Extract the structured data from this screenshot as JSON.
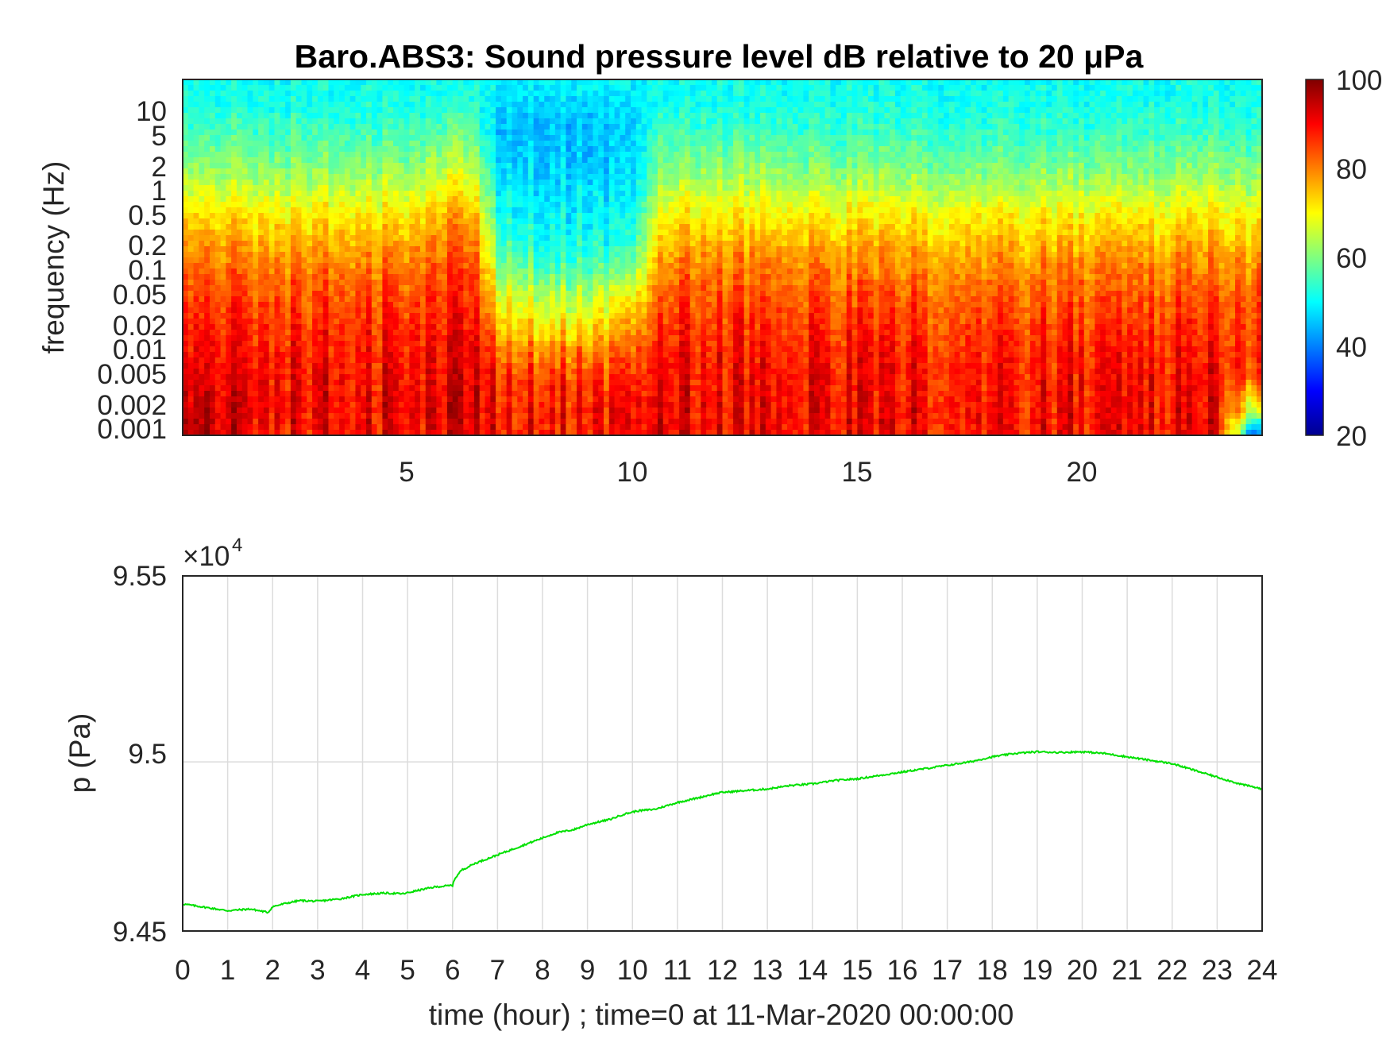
{
  "spectrogram": {
    "title": "Baro.ABS3: Sound pressure level dB relative to 20 μPa",
    "ylabel": "frequency (Hz)",
    "yticks": [
      "10",
      "5",
      "2",
      "1",
      "0.5",
      "0.2",
      "0.1",
      "0.05",
      "0.02",
      "0.01",
      "0.005",
      "0.002",
      "0.001"
    ],
    "xticks": [
      "5",
      "10",
      "15",
      "20"
    ],
    "colorbar": {
      "ticks": [
        "100",
        "80",
        "60",
        "40",
        "20"
      ],
      "colormap": "jet",
      "range": [
        20,
        100
      ]
    }
  },
  "pressure": {
    "ylabel": "p (Pa)",
    "exponent_base": "×10",
    "exponent_power": "4",
    "yticks": [
      "9.55",
      "9.5",
      "9.45"
    ],
    "xticks": [
      "0",
      "1",
      "2",
      "3",
      "4",
      "5",
      "6",
      "7",
      "8",
      "9",
      "10",
      "11",
      "12",
      "13",
      "14",
      "15",
      "16",
      "17",
      "18",
      "19",
      "20",
      "21",
      "22",
      "23",
      "24"
    ],
    "xlabel": "time (hour) ; time=0 at 11-Mar-2020 00:00:00",
    "line_color": "#00e000"
  },
  "chart_data": [
    {
      "type": "heatmap",
      "title": "Baro.ABS3: Sound pressure level dB relative to 20 μPa",
      "ylabel": "frequency (Hz)",
      "yscale": "log",
      "ylim": [
        0.001,
        20
      ],
      "xlim": [
        0,
        24
      ],
      "colorbar_range": [
        20,
        100
      ],
      "colormap": "jet",
      "profile_hours": [
        0,
        1,
        2,
        3,
        4,
        5,
        6,
        6.5,
        7,
        8,
        9,
        10,
        10.5,
        11,
        12,
        13,
        14,
        15,
        16,
        17,
        18,
        19,
        20,
        21,
        22,
        23,
        24
      ],
      "profile_freq_hz": [
        0.001,
        0.002,
        0.005,
        0.01,
        0.02,
        0.05,
        0.1,
        0.2,
        0.5,
        1,
        2,
        5,
        10,
        20
      ],
      "levels_db": [
        [
          97,
          95,
          92,
          90,
          88,
          85,
          82,
          78,
          72,
          66,
          60,
          55,
          52,
          51
        ],
        [
          92,
          92,
          90,
          89,
          87,
          84,
          81,
          77,
          71,
          65,
          60,
          55,
          52,
          51
        ],
        [
          90,
          91,
          90,
          89,
          87,
          84,
          81,
          77,
          71,
          65,
          60,
          55,
          52,
          51
        ],
        [
          90,
          91,
          90,
          89,
          87,
          84,
          81,
          77,
          71,
          65,
          60,
          55,
          52,
          51
        ],
        [
          90,
          91,
          90,
          89,
          87,
          84,
          81,
          77,
          71,
          65,
          60,
          55,
          52,
          51
        ],
        [
          90,
          91,
          90,
          89,
          87,
          84,
          81,
          77,
          71,
          65,
          60,
          55,
          52,
          51
        ],
        [
          91,
          92,
          91,
          90,
          88,
          86,
          84,
          81,
          76,
          70,
          64,
          58,
          53,
          51
        ],
        [
          91,
          92,
          91,
          90,
          88,
          86,
          84,
          80,
          74,
          68,
          62,
          56,
          52,
          51
        ],
        [
          90,
          90,
          88,
          84,
          78,
          70,
          63,
          58,
          53,
          50,
          48,
          46,
          48,
          50
        ],
        [
          89,
          89,
          86,
          80,
          72,
          64,
          57,
          52,
          49,
          48,
          46,
          45,
          47,
          50
        ],
        [
          89,
          89,
          86,
          80,
          72,
          64,
          57,
          52,
          49,
          48,
          46,
          45,
          47,
          50
        ],
        [
          90,
          90,
          87,
          83,
          78,
          69,
          60,
          54,
          50,
          48,
          47,
          46,
          48,
          50
        ],
        [
          91,
          91,
          89,
          87,
          84,
          80,
          76,
          71,
          66,
          61,
          57,
          54,
          51,
          50
        ],
        [
          91,
          91,
          90,
          89,
          87,
          84,
          81,
          77,
          71,
          65,
          60,
          55,
          52,
          51
        ],
        [
          91,
          91,
          90,
          89,
          87,
          84,
          81,
          77,
          71,
          65,
          60,
          55,
          52,
          51
        ],
        [
          91,
          91,
          90,
          89,
          87,
          84,
          81,
          77,
          71,
          65,
          60,
          55,
          52,
          51
        ],
        [
          90,
          90,
          89,
          88,
          86,
          83,
          80,
          76,
          70,
          64,
          59,
          54,
          52,
          51
        ],
        [
          90,
          90,
          89,
          88,
          86,
          83,
          80,
          76,
          70,
          64,
          59,
          54,
          52,
          51
        ],
        [
          90,
          90,
          89,
          88,
          86,
          83,
          80,
          76,
          70,
          64,
          59,
          54,
          52,
          51
        ],
        [
          90,
          90,
          89,
          88,
          86,
          83,
          80,
          76,
          70,
          64,
          59,
          54,
          52,
          51
        ],
        [
          90,
          90,
          89,
          88,
          86,
          83,
          80,
          76,
          70,
          64,
          59,
          54,
          52,
          51
        ],
        [
          90,
          90,
          89,
          88,
          86,
          83,
          80,
          76,
          70,
          64,
          59,
          54,
          52,
          51
        ],
        [
          90,
          90,
          89,
          88,
          86,
          83,
          80,
          76,
          70,
          64,
          59,
          54,
          52,
          51
        ],
        [
          90,
          90,
          89,
          88,
          86,
          83,
          80,
          76,
          70,
          64,
          59,
          54,
          52,
          51
        ],
        [
          90,
          90,
          89,
          88,
          86,
          83,
          80,
          76,
          70,
          64,
          59,
          54,
          52,
          51
        ],
        [
          91,
          91,
          90,
          89,
          87,
          84,
          81,
          77,
          71,
          65,
          60,
          55,
          52,
          51
        ],
        [
          28,
          60,
          82,
          85,
          84,
          82,
          79,
          75,
          69,
          63,
          58,
          54,
          52,
          51
        ]
      ]
    },
    {
      "type": "line",
      "ylabel": "p (Pa)",
      "xlabel": "time (hour) ; time=0 at 11-Mar-2020 00:00:00",
      "xlim": [
        0,
        24
      ],
      "ylim": [
        94500,
        95550
      ],
      "grid": true,
      "series": [
        {
          "color": "#00e000",
          "x": [
            0,
            0.5,
            1,
            1.5,
            1.9,
            2.0,
            2.3,
            2.6,
            3,
            3.5,
            4,
            4.5,
            4.9,
            5.3,
            5.6,
            6.0,
            6.05,
            6.2,
            6.5,
            7,
            7.5,
            8,
            8.3,
            8.7,
            9,
            9.5,
            9.8,
            10.1,
            10.5,
            11,
            11.5,
            11.8,
            12,
            12.5,
            13,
            13.5,
            14,
            14.5,
            15,
            15.5,
            16,
            16.5,
            17,
            17.5,
            18,
            18.5,
            19,
            19.5,
            20,
            20.5,
            21,
            21.5,
            22,
            22.5,
            23,
            23.5,
            24
          ],
          "y": [
            94580,
            94570,
            94560,
            94565,
            94555,
            94572,
            94582,
            94590,
            94588,
            94595,
            94608,
            94612,
            94610,
            94622,
            94630,
            94635,
            94655,
            94680,
            94700,
            94725,
            94750,
            94775,
            94790,
            94800,
            94815,
            94830,
            94845,
            94855,
            94860,
            94880,
            94895,
            94905,
            94910,
            94915,
            94920,
            94930,
            94935,
            94945,
            94950,
            94960,
            94970,
            94980,
            94990,
            95000,
            95015,
            95025,
            95030,
            95028,
            95030,
            95025,
            95015,
            95005,
            94995,
            94975,
            94955,
            94935,
            94920
          ]
        }
      ]
    }
  ]
}
